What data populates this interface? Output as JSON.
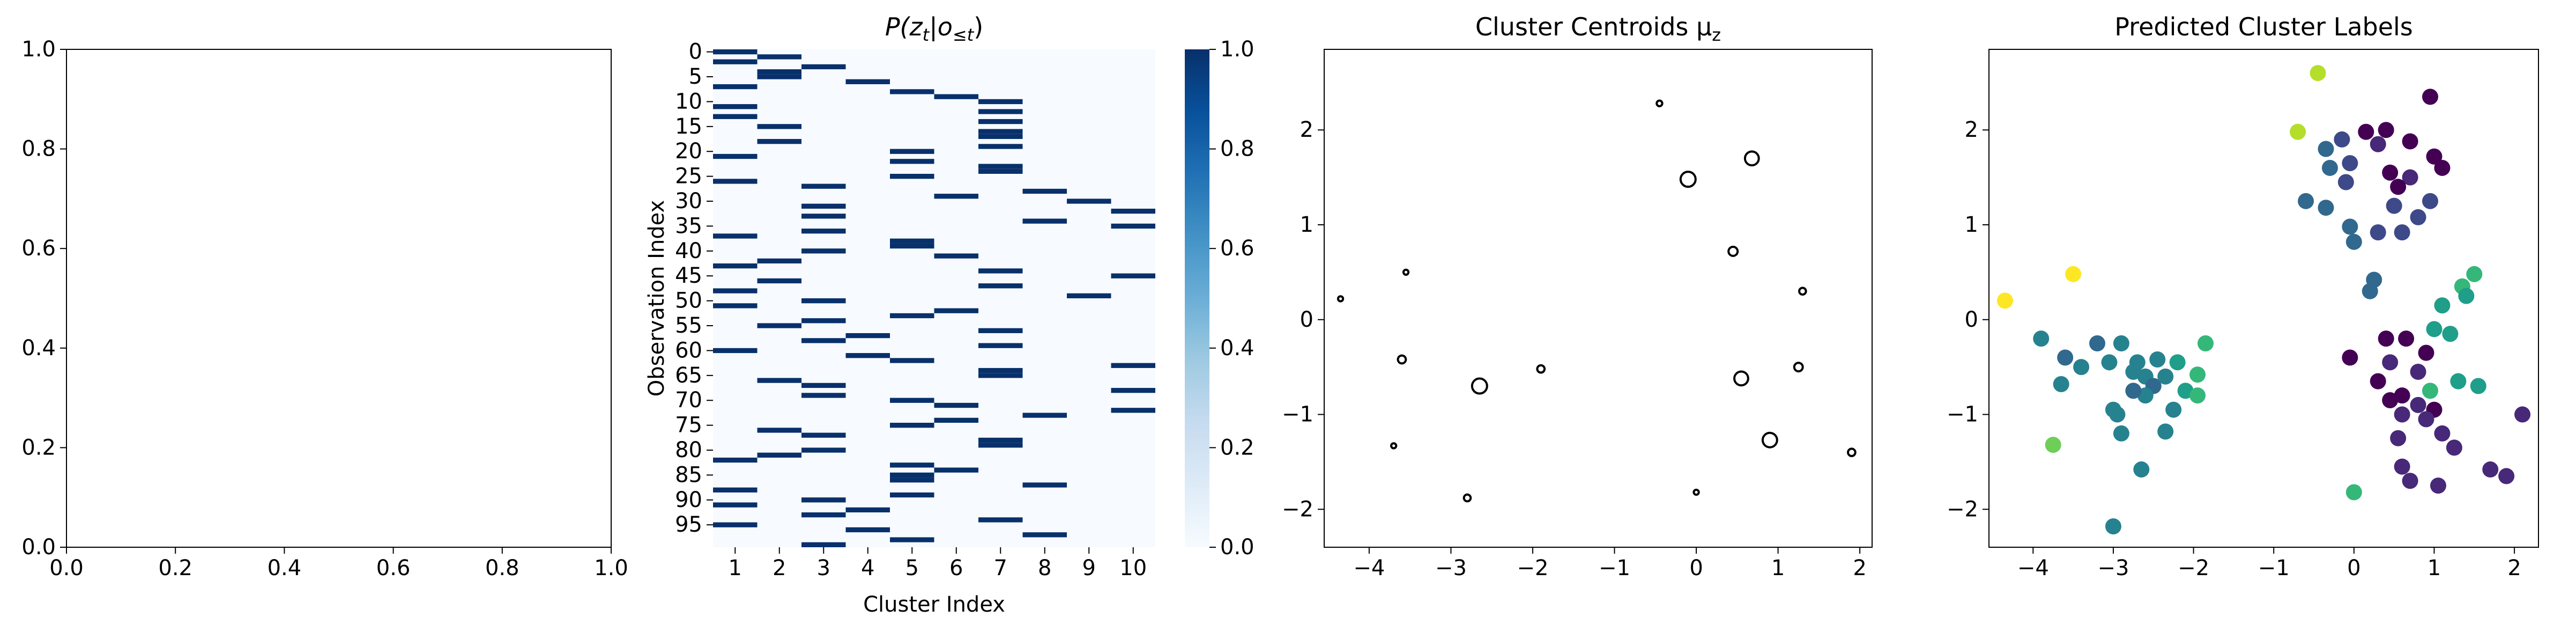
{
  "chart_data": [
    {
      "type": "empty",
      "title": "",
      "xlabel": "",
      "ylabel": "",
      "xlim": [
        0,
        1
      ],
      "ylim": [
        0,
        1
      ],
      "xticks": [
        "0.0",
        "0.2",
        "0.4",
        "0.6",
        "0.8",
        "1.0"
      ],
      "yticks": [
        "0.0",
        "0.2",
        "0.4",
        "0.6",
        "0.8",
        "1.0"
      ]
    },
    {
      "type": "heatmap",
      "title": "P(z_t|o_{≤t})",
      "title_main": "P(z",
      "title_sub1": "t",
      "title_mid": "|o",
      "title_sub2": "≤t",
      "title_end": ")",
      "xlabel": "Cluster Index",
      "ylabel": "Observation Index",
      "n_rows": 100,
      "x_categories": [
        "1",
        "2",
        "3",
        "4",
        "5",
        "6",
        "7",
        "8",
        "9",
        "10"
      ],
      "y_tick_labels": [
        "0",
        "5",
        "10",
        "15",
        "20",
        "25",
        "30",
        "35",
        "40",
        "45",
        "50",
        "55",
        "60",
        "65",
        "70",
        "75",
        "80",
        "85",
        "90",
        "95"
      ],
      "y_tick_rows": [
        0,
        5,
        10,
        15,
        20,
        25,
        30,
        35,
        40,
        45,
        50,
        55,
        60,
        65,
        70,
        75,
        80,
        85,
        90,
        95
      ],
      "assignment": [
        1,
        2,
        1,
        3,
        2,
        2,
        4,
        1,
        5,
        6,
        7,
        1,
        7,
        1,
        7,
        2,
        7,
        7,
        2,
        7,
        5,
        1,
        5,
        7,
        7,
        5,
        1,
        3,
        8,
        6,
        9,
        3,
        10,
        3,
        8,
        10,
        3,
        1,
        5,
        5,
        3,
        6,
        2,
        1,
        7,
        10,
        2,
        7,
        1,
        9,
        3,
        1,
        6,
        5,
        3,
        2,
        7,
        4,
        3,
        7,
        1,
        4,
        5,
        10,
        7,
        7,
        2,
        3,
        10,
        3,
        5,
        6,
        10,
        8,
        6,
        5,
        2,
        3,
        7,
        7,
        3,
        2,
        1,
        5,
        6,
        5,
        5,
        8,
        1,
        5,
        3,
        1,
        4,
        3,
        7,
        1,
        4,
        8,
        5,
        3
      ],
      "colorbar": {
        "min": 0,
        "max": 1,
        "ticks": [
          "0.0",
          "0.2",
          "0.4",
          "0.6",
          "0.8",
          "1.0"
        ]
      },
      "colors": {
        "low": "#f7fbff",
        "high": "#08306b"
      }
    },
    {
      "type": "scatter",
      "title": "Cluster Centroids μ_z",
      "title_main": "Cluster Centroids μ",
      "title_sub": "z",
      "xlabel": "",
      "ylabel": "",
      "xlim": [
        -4.55,
        2.15
      ],
      "ylim": [
        -2.4,
        2.85
      ],
      "xticks": [
        -4,
        -3,
        -2,
        -1,
        0,
        1,
        2
      ],
      "xtick_labels": [
        "−4",
        "−3",
        "−2",
        "−1",
        "0",
        "1",
        "2"
      ],
      "yticks": [
        -2,
        -1,
        0,
        1,
        2
      ],
      "ytick_labels": [
        "−2",
        "−1",
        "0",
        "1",
        "2"
      ],
      "marker": "hollow-circle",
      "points": [
        {
          "x": -0.45,
          "y": 2.28,
          "size": 0.2
        },
        {
          "x": -0.1,
          "y": 1.48,
          "size": 1.0
        },
        {
          "x": 0.68,
          "y": 1.7,
          "size": 0.9
        },
        {
          "x": 0.45,
          "y": 0.72,
          "size": 0.5
        },
        {
          "x": 1.3,
          "y": 0.3,
          "size": 0.3
        },
        {
          "x": -4.35,
          "y": 0.22,
          "size": 0.15
        },
        {
          "x": -3.55,
          "y": 0.5,
          "size": 0.15
        },
        {
          "x": -3.6,
          "y": -0.42,
          "size": 0.4
        },
        {
          "x": -2.65,
          "y": -0.7,
          "size": 1.0
        },
        {
          "x": -1.9,
          "y": -0.52,
          "size": 0.35
        },
        {
          "x": 0.55,
          "y": -0.62,
          "size": 0.9
        },
        {
          "x": 1.25,
          "y": -0.5,
          "size": 0.45
        },
        {
          "x": 0.9,
          "y": -1.27,
          "size": 0.95
        },
        {
          "x": 1.9,
          "y": -1.4,
          "size": 0.35
        },
        {
          "x": -3.7,
          "y": -1.33,
          "size": 0.15
        },
        {
          "x": -2.8,
          "y": -1.88,
          "size": 0.3
        },
        {
          "x": 0.0,
          "y": -1.82,
          "size": 0.15
        }
      ]
    },
    {
      "type": "scatter",
      "title": "Predicted Cluster Labels",
      "xlabel": "",
      "ylabel": "",
      "xlim": [
        -4.55,
        2.3
      ],
      "ylim": [
        -2.4,
        2.85
      ],
      "xticks": [
        -4,
        -3,
        -2,
        -1,
        0,
        1,
        2
      ],
      "xtick_labels": [
        "−4",
        "−3",
        "−2",
        "−1",
        "0",
        "1",
        "2"
      ],
      "yticks": [
        -2,
        -1,
        0,
        1,
        2
      ],
      "ytick_labels": [
        "−2",
        "−1",
        "0",
        "1",
        "2"
      ],
      "colors": {
        "c0": "#440154",
        "c1": "#482878",
        "c2": "#3e4989",
        "c3": "#31688e",
        "c4": "#26828e",
        "c5": "#1f9e89",
        "c6": "#35b779",
        "c7": "#6ece58",
        "c8": "#b5de2b",
        "c9": "#fde725"
      },
      "points": [
        {
          "x": -0.45,
          "y": 2.6,
          "label": 8
        },
        {
          "x": -0.7,
          "y": 1.98,
          "label": 8
        },
        {
          "x": 0.95,
          "y": 2.35,
          "label": 0
        },
        {
          "x": 0.4,
          "y": 2.0,
          "label": 0
        },
        {
          "x": 0.15,
          "y": 1.98,
          "label": 0
        },
        {
          "x": 0.3,
          "y": 1.85,
          "label": 1
        },
        {
          "x": -0.15,
          "y": 1.9,
          "label": 2
        },
        {
          "x": 0.7,
          "y": 1.88,
          "label": 0
        },
        {
          "x": 1.0,
          "y": 1.72,
          "label": 0
        },
        {
          "x": 1.1,
          "y": 1.6,
          "label": 0
        },
        {
          "x": -0.35,
          "y": 1.8,
          "label": 3
        },
        {
          "x": -0.3,
          "y": 1.6,
          "label": 3
        },
        {
          "x": 0.45,
          "y": 1.55,
          "label": 0
        },
        {
          "x": 0.7,
          "y": 1.5,
          "label": 1
        },
        {
          "x": 0.55,
          "y": 1.4,
          "label": 0
        },
        {
          "x": -0.1,
          "y": 1.45,
          "label": 2
        },
        {
          "x": -0.05,
          "y": 1.65,
          "label": 2
        },
        {
          "x": -0.6,
          "y": 1.25,
          "label": 3
        },
        {
          "x": -0.35,
          "y": 1.18,
          "label": 3
        },
        {
          "x": 0.5,
          "y": 1.2,
          "label": 2
        },
        {
          "x": 0.95,
          "y": 1.25,
          "label": 2
        },
        {
          "x": 0.8,
          "y": 1.08,
          "label": 2
        },
        {
          "x": -0.05,
          "y": 0.98,
          "label": 3
        },
        {
          "x": 0.3,
          "y": 0.92,
          "label": 2
        },
        {
          "x": 0.6,
          "y": 0.92,
          "label": 2
        },
        {
          "x": 0.0,
          "y": 0.82,
          "label": 3
        },
        {
          "x": 0.25,
          "y": 0.42,
          "label": 3
        },
        {
          "x": 0.2,
          "y": 0.3,
          "label": 3
        },
        {
          "x": 1.5,
          "y": 0.48,
          "label": 6
        },
        {
          "x": 1.35,
          "y": 0.35,
          "label": 6
        },
        {
          "x": 1.4,
          "y": 0.25,
          "label": 5
        },
        {
          "x": 1.1,
          "y": 0.15,
          "label": 5
        },
        {
          "x": 1.0,
          "y": -0.1,
          "label": 5
        },
        {
          "x": 1.2,
          "y": -0.15,
          "label": 5
        },
        {
          "x": 0.4,
          "y": -0.2,
          "label": 0
        },
        {
          "x": 0.65,
          "y": -0.2,
          "label": 0
        },
        {
          "x": 0.9,
          "y": -0.35,
          "label": 0
        },
        {
          "x": -0.05,
          "y": -0.4,
          "label": 0
        },
        {
          "x": 0.45,
          "y": -0.45,
          "label": 1
        },
        {
          "x": 0.8,
          "y": -0.55,
          "label": 1
        },
        {
          "x": 1.3,
          "y": -0.65,
          "label": 5
        },
        {
          "x": 1.55,
          "y": -0.7,
          "label": 5
        },
        {
          "x": 0.3,
          "y": -0.65,
          "label": 0
        },
        {
          "x": 0.6,
          "y": -0.8,
          "label": 0
        },
        {
          "x": 0.95,
          "y": -0.75,
          "label": 6
        },
        {
          "x": 0.45,
          "y": -0.85,
          "label": 0
        },
        {
          "x": 0.8,
          "y": -0.9,
          "label": 1
        },
        {
          "x": 1.0,
          "y": -0.95,
          "label": 0
        },
        {
          "x": 0.6,
          "y": -1.0,
          "label": 1
        },
        {
          "x": 0.9,
          "y": -1.05,
          "label": 1
        },
        {
          "x": 2.1,
          "y": -1.0,
          "label": 1
        },
        {
          "x": 1.1,
          "y": -1.2,
          "label": 1
        },
        {
          "x": 0.55,
          "y": -1.25,
          "label": 1
        },
        {
          "x": 1.25,
          "y": -1.35,
          "label": 1
        },
        {
          "x": 0.6,
          "y": -1.55,
          "label": 1
        },
        {
          "x": 0.7,
          "y": -1.7,
          "label": 1
        },
        {
          "x": 1.7,
          "y": -1.58,
          "label": 1
        },
        {
          "x": 1.9,
          "y": -1.65,
          "label": 1
        },
        {
          "x": 1.05,
          "y": -1.75,
          "label": 1
        },
        {
          "x": 0.0,
          "y": -1.82,
          "label": 6
        },
        {
          "x": -4.35,
          "y": 0.2,
          "label": 9
        },
        {
          "x": -3.5,
          "y": 0.48,
          "label": 9
        },
        {
          "x": -3.75,
          "y": -1.32,
          "label": 7
        },
        {
          "x": -3.9,
          "y": -0.2,
          "label": 4
        },
        {
          "x": -3.6,
          "y": -0.4,
          "label": 3
        },
        {
          "x": -3.2,
          "y": -0.25,
          "label": 3
        },
        {
          "x": -2.9,
          "y": -0.25,
          "label": 4
        },
        {
          "x": -3.4,
          "y": -0.5,
          "label": 4
        },
        {
          "x": -3.05,
          "y": -0.45,
          "label": 4
        },
        {
          "x": -3.65,
          "y": -0.68,
          "label": 4
        },
        {
          "x": -2.7,
          "y": -0.45,
          "label": 4
        },
        {
          "x": -2.45,
          "y": -0.42,
          "label": 4
        },
        {
          "x": -2.2,
          "y": -0.45,
          "label": 5
        },
        {
          "x": -1.85,
          "y": -0.25,
          "label": 6
        },
        {
          "x": -2.6,
          "y": -0.6,
          "label": 4
        },
        {
          "x": -2.75,
          "y": -0.55,
          "label": 4
        },
        {
          "x": -2.5,
          "y": -0.7,
          "label": 3
        },
        {
          "x": -2.35,
          "y": -0.6,
          "label": 4
        },
        {
          "x": -2.1,
          "y": -0.75,
          "label": 5
        },
        {
          "x": -1.95,
          "y": -0.58,
          "label": 6
        },
        {
          "x": -2.6,
          "y": -0.8,
          "label": 4
        },
        {
          "x": -2.75,
          "y": -0.75,
          "label": 3
        },
        {
          "x": -3.0,
          "y": -0.95,
          "label": 4
        },
        {
          "x": -2.95,
          "y": -1.0,
          "label": 4
        },
        {
          "x": -2.25,
          "y": -0.95,
          "label": 4
        },
        {
          "x": -1.95,
          "y": -0.8,
          "label": 6
        },
        {
          "x": -2.35,
          "y": -1.18,
          "label": 4
        },
        {
          "x": -2.9,
          "y": -1.2,
          "label": 4
        },
        {
          "x": -2.65,
          "y": -1.58,
          "label": 4
        },
        {
          "x": -3.0,
          "y": -2.18,
          "label": 4
        }
      ]
    }
  ]
}
